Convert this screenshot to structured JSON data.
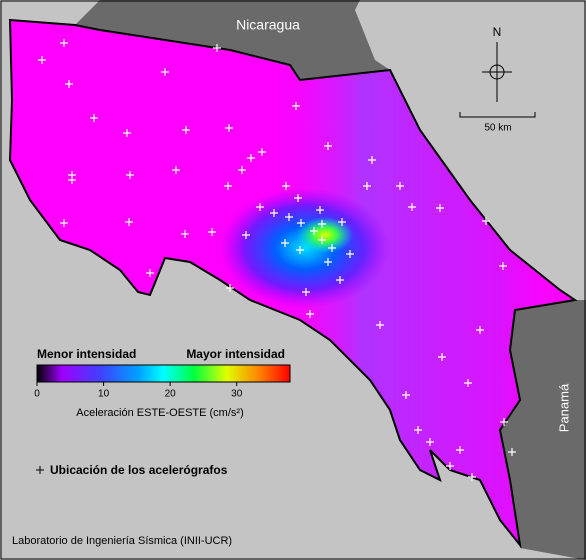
{
  "map": {
    "neighbors": {
      "north": "Nicaragua",
      "south_east": "Panamá"
    },
    "compass": "N",
    "scale_bar": "50 km",
    "colorbar": {
      "low_label": "Menor intensidad",
      "high_label": "Mayor intensidad",
      "lim": [
        0,
        38
      ],
      "ticks": [
        0,
        10,
        20,
        30
      ],
      "label": "Aceleración ESTE-OESTE (cm/s²)"
    },
    "legend": "Ubicación de los acelerógrafos",
    "credit": "Laboratorio de Ingeniería Sísmica (INII-UCR)"
  }
}
